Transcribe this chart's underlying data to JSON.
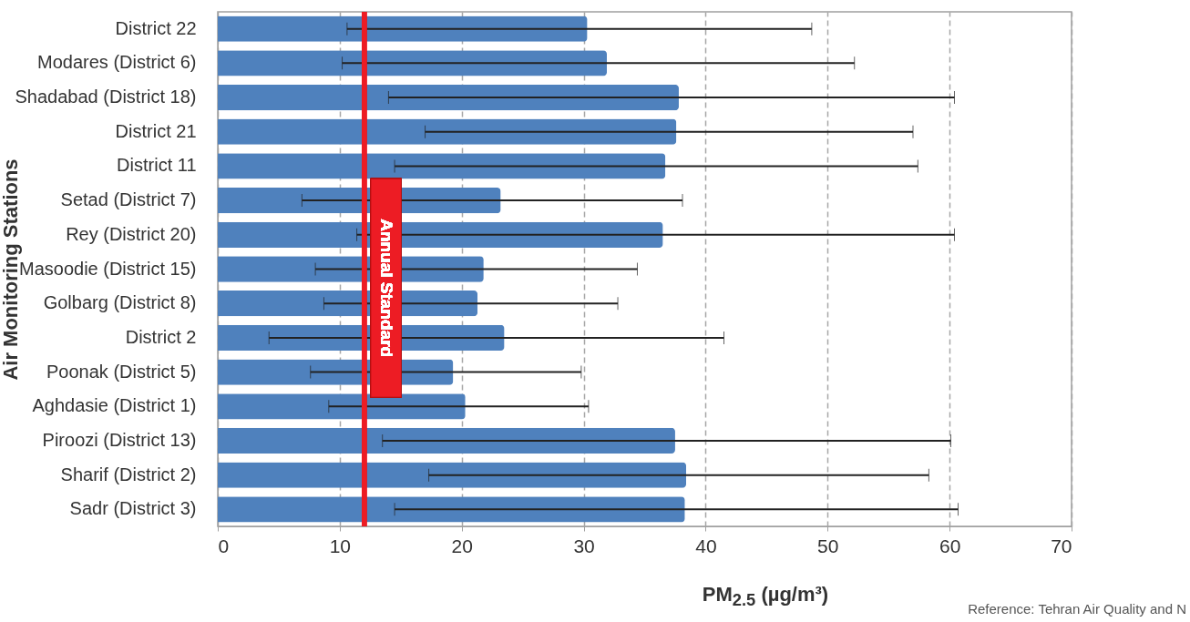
{
  "chart_data": {
    "type": "bar",
    "orientation": "horizontal",
    "categories": [
      "District 22",
      "Modares (District 6)",
      "Shadabad (District 18)",
      "District 21",
      "District 11",
      "Setad (District 7)",
      "Rey (District 20)",
      "Masoodie (District 15)",
      "Golbarg (District 8)",
      "District 2",
      "Poonak (District 5)",
      "Aghdasie (District 1)",
      "Piroozi (District 13)",
      "Sharif (District 2)",
      "Sadr (District 3)"
    ],
    "values": [
      30.3,
      31.9,
      37.8,
      37.6,
      36.7,
      23.2,
      36.5,
      21.8,
      21.3,
      23.5,
      19.3,
      20.3,
      37.5,
      38.4,
      38.3
    ],
    "errors": [
      [
        10.6,
        48.7
      ],
      [
        10.2,
        52.2
      ],
      [
        14.0,
        60.4
      ],
      [
        17.0,
        57.0
      ],
      [
        14.5,
        57.4
      ],
      [
        6.9,
        38.1
      ],
      [
        11.4,
        60.4
      ],
      [
        8.0,
        34.4
      ],
      [
        8.7,
        32.8
      ],
      [
        4.2,
        41.5
      ],
      [
        7.6,
        29.8
      ],
      [
        9.1,
        30.4
      ],
      [
        13.5,
        60.1
      ],
      [
        17.3,
        58.3
      ],
      [
        14.5,
        60.7
      ]
    ],
    "color": "#4f81bd",
    "xlim": [
      0,
      70
    ],
    "xticks": [
      0,
      10,
      20,
      30,
      40,
      50,
      60,
      70
    ],
    "xlabel": "PM$_{2.5}$ (µg/m³)",
    "ylabel": "Air Monitoring Stations",
    "grid": "x",
    "ref_lines": [
      {
        "axis": "x",
        "value": 12,
        "label": "Annual Standard",
        "color": "#ed1c24"
      }
    ],
    "annotations": [
      "Reference: Tehran Air Quality and N"
    ]
  }
}
